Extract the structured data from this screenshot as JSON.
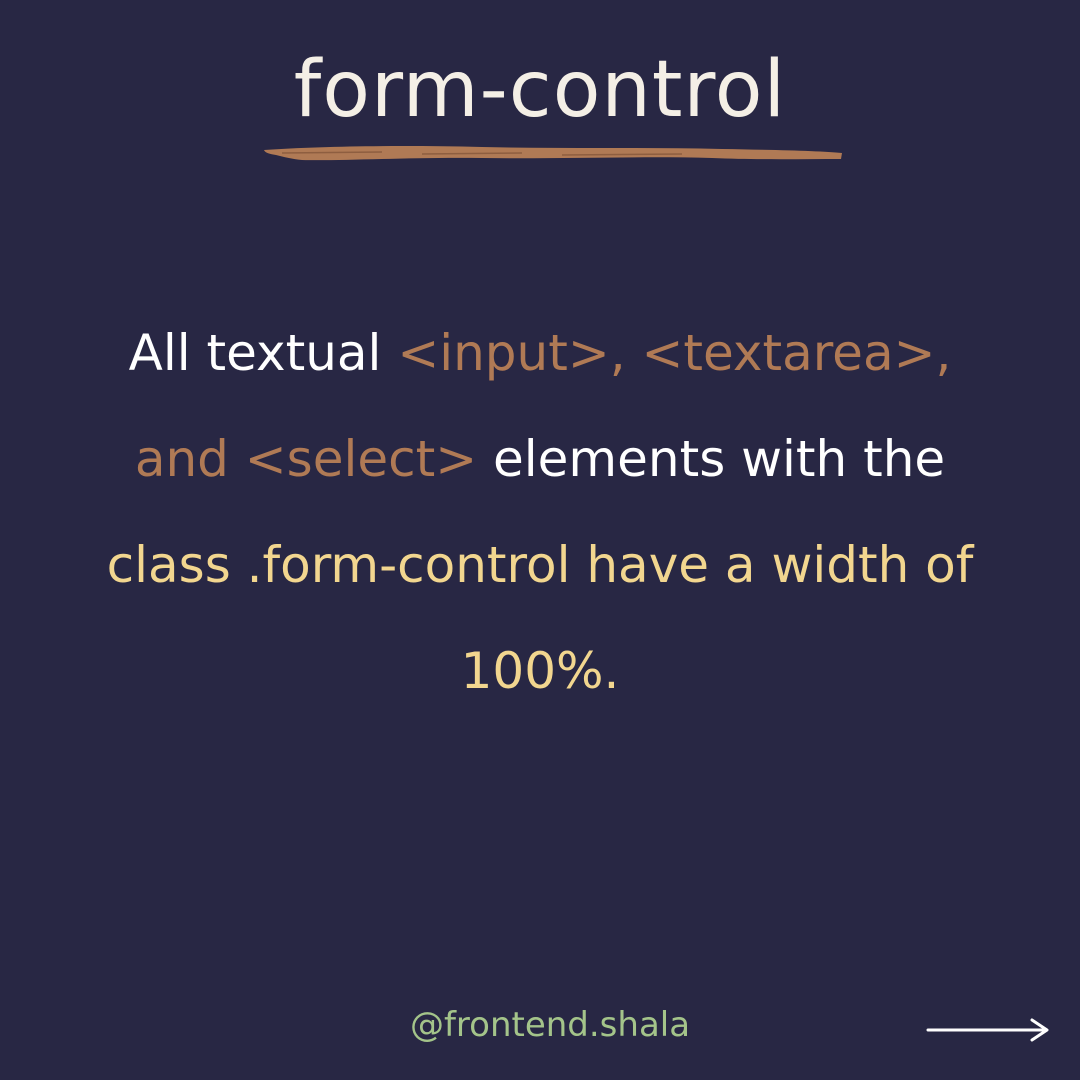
{
  "title": "form-control",
  "body": {
    "line1_white": "All textual ",
    "line1_brown": "<input>, <textarea>,",
    "line2_brown": "and <select>",
    "line2_white": " elements with the",
    "line3_yellow": "class .form-control have a width of",
    "line4_yellow": "100%."
  },
  "footer": {
    "handle": "@frontend.shala"
  },
  "icons": {
    "next": "arrow-right-icon",
    "underline": "brush-stroke"
  },
  "colors": {
    "background": "#282744",
    "title": "#f4efe6",
    "white_text": "#ffffff",
    "code_text": "#b07a55",
    "highlight_text": "#f2d68f",
    "handle": "#a4c48a",
    "underline": "#b07a55"
  }
}
